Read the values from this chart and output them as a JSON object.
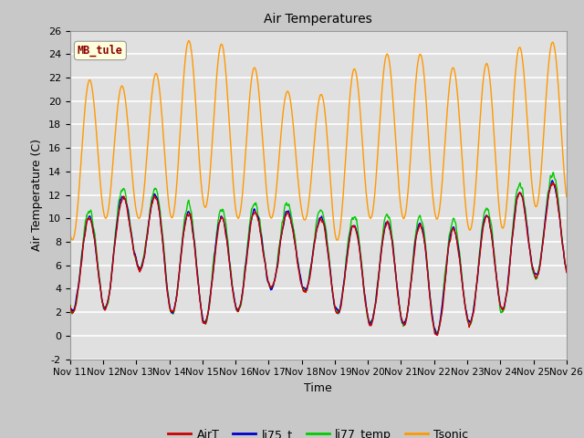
{
  "title": "Air Temperatures",
  "xlabel": "Time",
  "ylabel": "Air Temperature (C)",
  "ylim": [
    -2,
    26
  ],
  "yticks": [
    -2,
    0,
    2,
    4,
    6,
    8,
    10,
    12,
    14,
    16,
    18,
    20,
    22,
    24,
    26
  ],
  "xtick_labels": [
    "Nov 11",
    "Nov 12",
    "Nov 13",
    "Nov 14",
    "Nov 15",
    "Nov 16",
    "Nov 17",
    "Nov 18",
    "Nov 19",
    "Nov 20",
    "Nov 21",
    "Nov 22",
    "Nov 23",
    "Nov 24",
    "Nov 25",
    "Nov 26"
  ],
  "colors": {
    "AirT": "#cc0000",
    "li75_t": "#0000cc",
    "li77_temp": "#00cc00",
    "Tsonic": "#ff9900"
  },
  "annotation_text": "MB_tule",
  "annotation_color": "#8b0000",
  "annotation_bg": "#ffffdd",
  "fig_bg": "#c8c8c8",
  "plot_bg": "#e0e0e0",
  "grid_color": "#ffffff",
  "n_days": 15,
  "points_per_day": 96,
  "figsize": [
    6.4,
    4.8
  ],
  "dpi": 100
}
